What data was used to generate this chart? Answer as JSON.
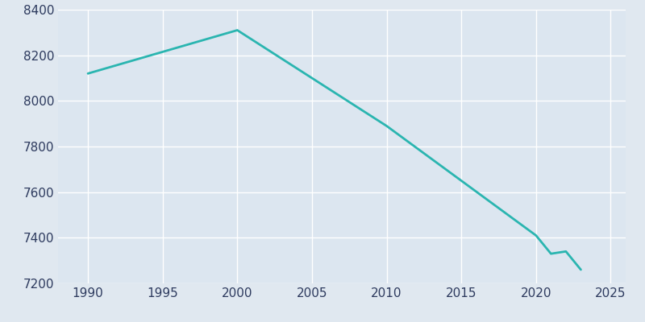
{
  "years": [
    1990,
    2000,
    2010,
    2020,
    2021,
    2022,
    2023
  ],
  "population": [
    8120,
    8310,
    7890,
    7410,
    7330,
    7340,
    7260
  ],
  "line_color": "#2ab5b0",
  "bg_color": "#e0e8f0",
  "plot_bg_color": "#dce6f0",
  "grid_color": "#ffffff",
  "tick_color": "#2d3a5e",
  "xlim": [
    1988,
    2026
  ],
  "ylim": [
    7200,
    8400
  ],
  "yticks": [
    7200,
    7400,
    7600,
    7800,
    8000,
    8200,
    8400
  ],
  "xticks": [
    1990,
    1995,
    2000,
    2005,
    2010,
    2015,
    2020,
    2025
  ],
  "linewidth": 2.0
}
